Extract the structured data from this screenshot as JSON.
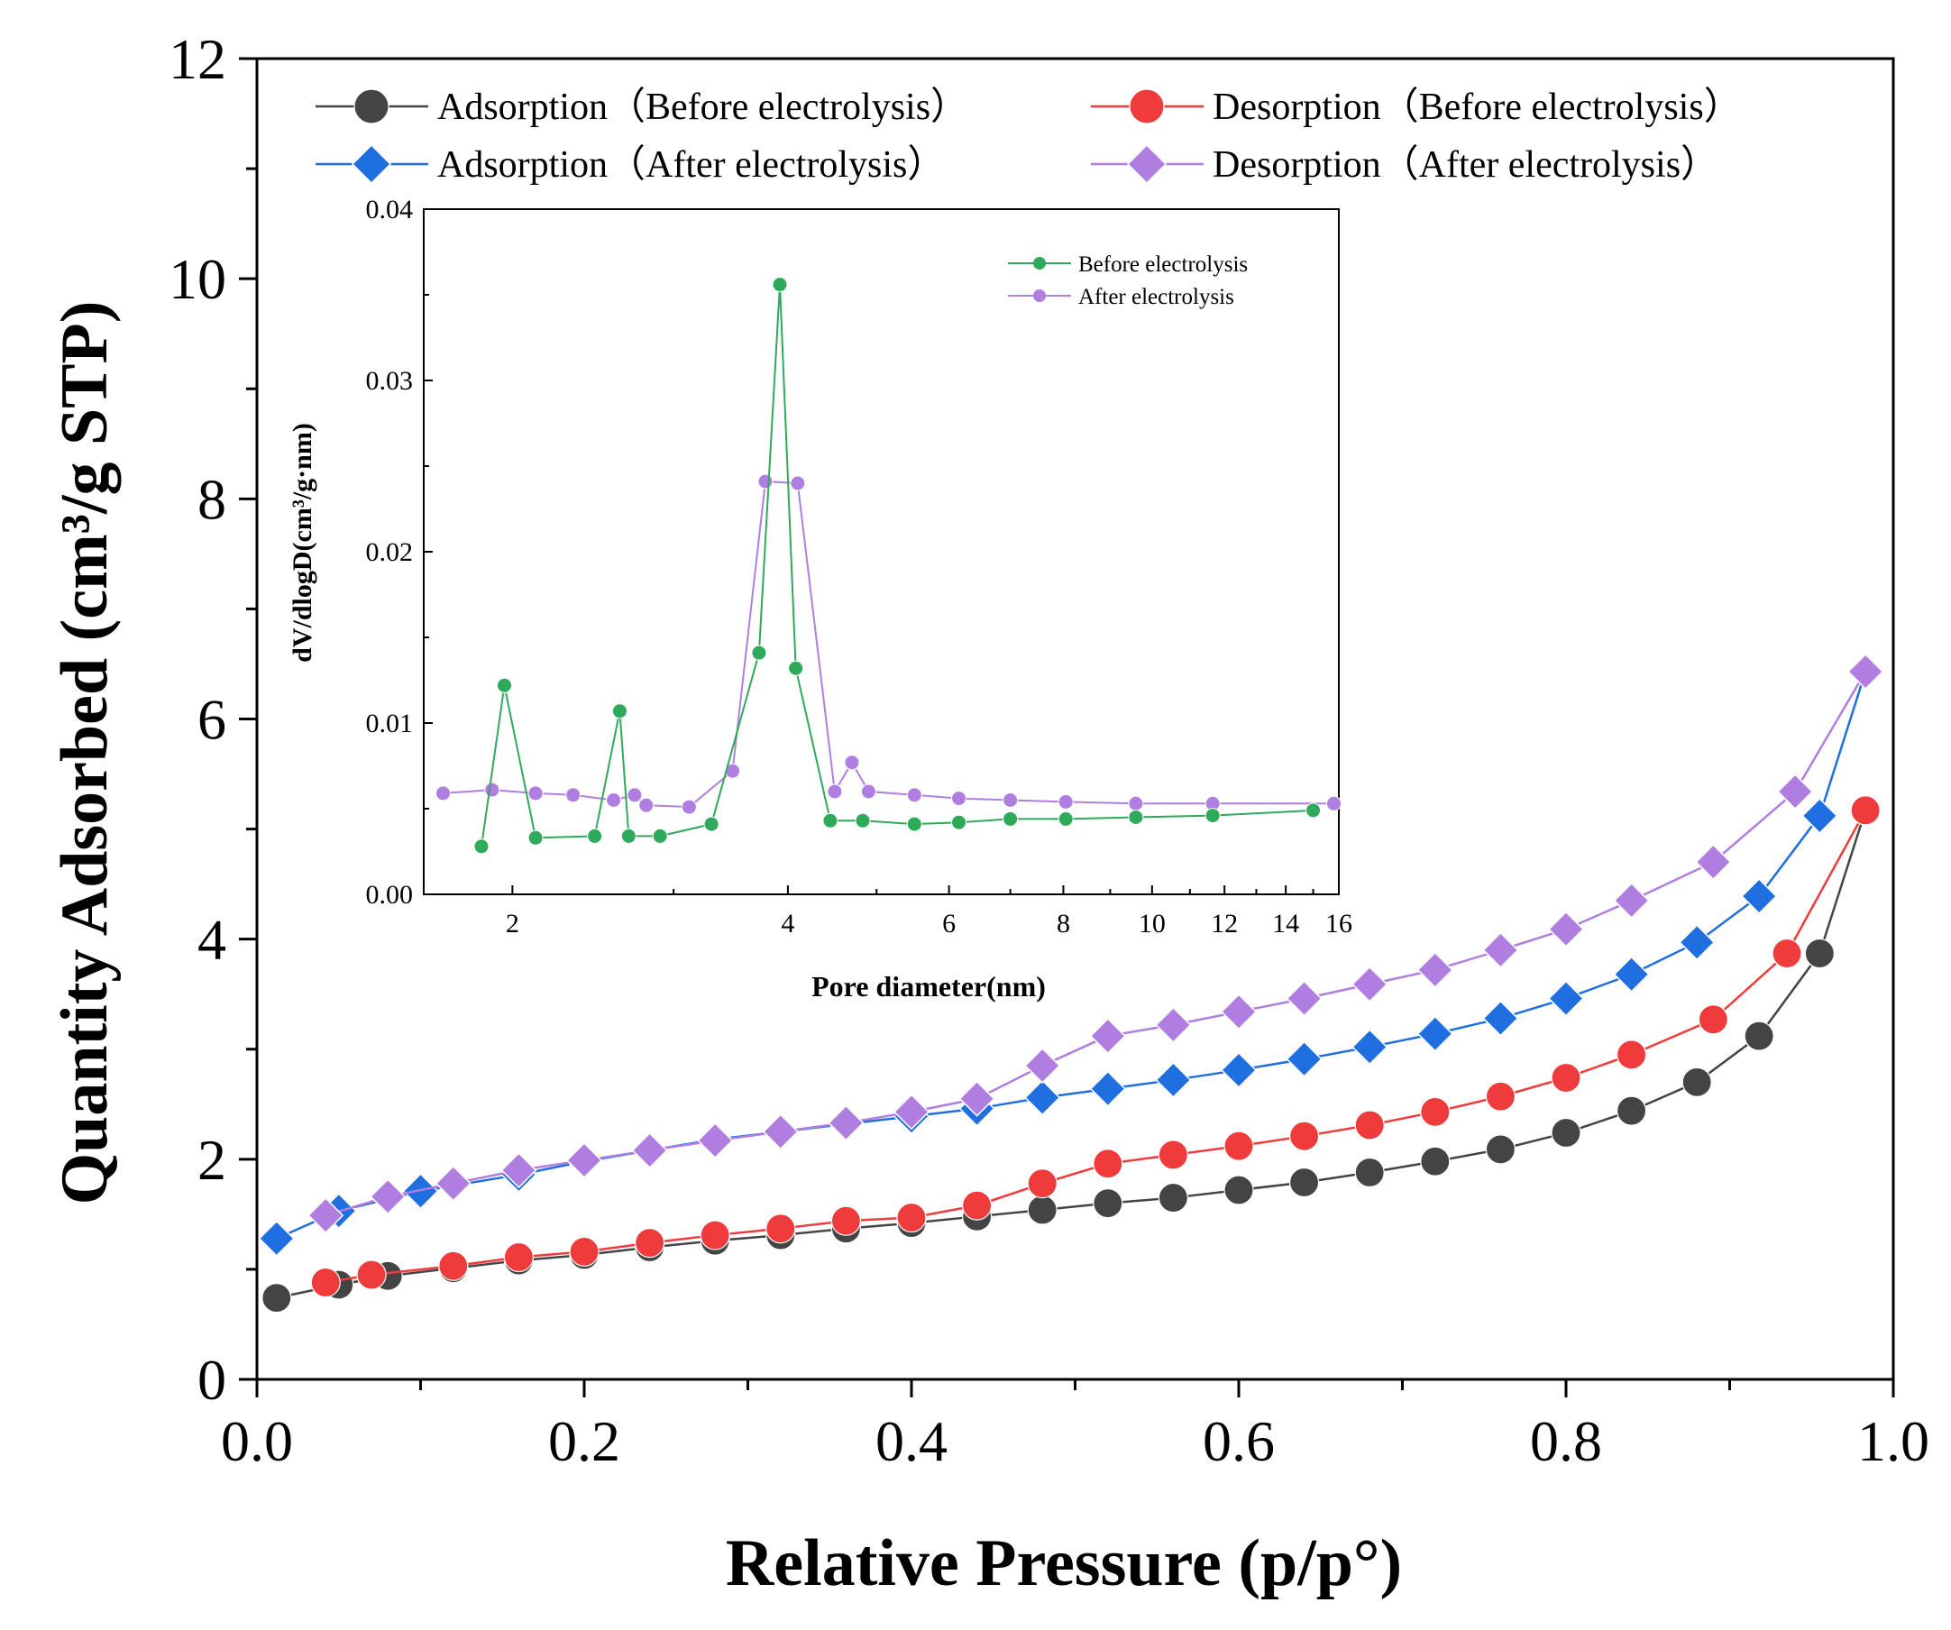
{
  "colors": {
    "adsorption_before": "#444444",
    "desorption_before": "#ef3b3b",
    "adsorption_after": "#1f6fe0",
    "desorption_after": "#b07ee0",
    "inset_before": "#2eaa5a",
    "inset_after": "#b07ee0"
  },
  "chart_data": [
    {
      "type": "line",
      "title": "",
      "xlabel": "Relative Pressure (p/p°)",
      "ylabel": "Quantity Adsorbed (cm³/g STP)",
      "xlim": [
        0,
        1.0
      ],
      "ylim": [
        0,
        12
      ],
      "x_ticks": [
        "0.0",
        "0.2",
        "0.4",
        "0.6",
        "0.8",
        "1.0"
      ],
      "y_ticks": [
        "0",
        "2",
        "4",
        "6",
        "8",
        "10",
        "12"
      ],
      "legend_position": "top",
      "series": [
        {
          "name": "Adsorption（Before electrolysis）",
          "marker": "circle",
          "x": [
            0.012,
            0.05,
            0.08,
            0.12,
            0.16,
            0.2,
            0.24,
            0.28,
            0.32,
            0.36,
            0.4,
            0.44,
            0.48,
            0.52,
            0.56,
            0.6,
            0.64,
            0.68,
            0.72,
            0.76,
            0.8,
            0.84,
            0.88,
            0.918,
            0.955,
            0.983
          ],
          "y": [
            0.74,
            0.86,
            0.94,
            1.01,
            1.08,
            1.13,
            1.2,
            1.26,
            1.31,
            1.37,
            1.42,
            1.48,
            1.54,
            1.6,
            1.65,
            1.72,
            1.79,
            1.88,
            1.98,
            2.09,
            2.24,
            2.44,
            2.7,
            3.12,
            3.87,
            5.17
          ]
        },
        {
          "name": "Desorption（Before electrolysis）",
          "marker": "circle",
          "x": [
            0.042,
            0.07,
            0.12,
            0.16,
            0.2,
            0.24,
            0.28,
            0.32,
            0.36,
            0.4,
            0.44,
            0.48,
            0.52,
            0.56,
            0.6,
            0.64,
            0.68,
            0.72,
            0.76,
            0.8,
            0.84,
            0.89,
            0.935,
            0.983
          ],
          "y": [
            0.88,
            0.95,
            1.03,
            1.11,
            1.16,
            1.24,
            1.31,
            1.37,
            1.44,
            1.47,
            1.58,
            1.78,
            1.96,
            2.04,
            2.12,
            2.21,
            2.31,
            2.43,
            2.57,
            2.74,
            2.95,
            3.27,
            3.87,
            5.17
          ]
        },
        {
          "name": "Adsorption（After electrolysis）",
          "marker": "diamond",
          "x": [
            0.012,
            0.05,
            0.1,
            0.16,
            0.2,
            0.24,
            0.28,
            0.32,
            0.36,
            0.4,
            0.44,
            0.48,
            0.52,
            0.56,
            0.6,
            0.64,
            0.68,
            0.72,
            0.76,
            0.8,
            0.84,
            0.88,
            0.918,
            0.955,
            0.983
          ],
          "y": [
            1.28,
            1.53,
            1.71,
            1.86,
            1.98,
            2.08,
            2.18,
            2.25,
            2.32,
            2.39,
            2.46,
            2.56,
            2.64,
            2.72,
            2.81,
            2.91,
            3.02,
            3.14,
            3.28,
            3.46,
            3.68,
            3.97,
            4.39,
            5.12,
            6.43
          ]
        },
        {
          "name": "Desorption（After electrolysis）",
          "marker": "diamond",
          "x": [
            0.042,
            0.08,
            0.12,
            0.16,
            0.2,
            0.24,
            0.28,
            0.32,
            0.36,
            0.4,
            0.44,
            0.48,
            0.52,
            0.56,
            0.6,
            0.64,
            0.68,
            0.72,
            0.76,
            0.8,
            0.84,
            0.89,
            0.94,
            0.983
          ],
          "y": [
            1.49,
            1.66,
            1.78,
            1.9,
            1.99,
            2.08,
            2.17,
            2.25,
            2.33,
            2.43,
            2.55,
            2.85,
            3.12,
            3.22,
            3.34,
            3.46,
            3.59,
            3.72,
            3.9,
            4.09,
            4.35,
            4.7,
            5.34,
            6.43
          ]
        }
      ]
    },
    {
      "type": "line",
      "title": "",
      "xlabel": "Pore diameter(nm)",
      "ylabel": "dV/dlogD(cm³/g·nm)",
      "x_scale": "log",
      "xlim": [
        1.6,
        16
      ],
      "ylim": [
        0,
        0.04
      ],
      "x_ticks": [
        "2",
        "4",
        "6",
        "8",
        "10",
        "12",
        "14",
        "16"
      ],
      "y_ticks": [
        "0.00",
        "0.01",
        "0.02",
        "0.03",
        "0.04"
      ],
      "legend_position": "top-right",
      "series": [
        {
          "name": "Before electrolysis",
          "marker": "circle",
          "x": [
            1.85,
            1.96,
            2.12,
            2.46,
            2.62,
            2.68,
            2.9,
            3.3,
            3.72,
            3.92,
            4.08,
            4.45,
            4.83,
            5.5,
            6.15,
            7.0,
            8.05,
            9.6,
            11.65,
            15.0
          ],
          "y": [
            0.0028,
            0.0122,
            0.0033,
            0.0034,
            0.0107,
            0.0034,
            0.0034,
            0.0041,
            0.0141,
            0.0356,
            0.0132,
            0.0043,
            0.0043,
            0.0041,
            0.0042,
            0.0044,
            0.0044,
            0.0045,
            0.0046,
            0.0049
          ]
        },
        {
          "name": "After electrolysis",
          "marker": "circle",
          "x": [
            1.68,
            1.9,
            2.12,
            2.33,
            2.58,
            2.72,
            2.8,
            3.12,
            3.48,
            3.78,
            4.1,
            4.5,
            4.7,
            4.9,
            5.5,
            6.15,
            7.0,
            8.05,
            9.6,
            11.65,
            15.8
          ],
          "y": [
            0.0059,
            0.0061,
            0.0059,
            0.0058,
            0.0055,
            0.0058,
            0.0052,
            0.0051,
            0.0072,
            0.0241,
            0.024,
            0.006,
            0.0077,
            0.006,
            0.0058,
            0.0056,
            0.0055,
            0.0054,
            0.0053,
            0.0053,
            0.0053
          ]
        }
      ]
    }
  ]
}
